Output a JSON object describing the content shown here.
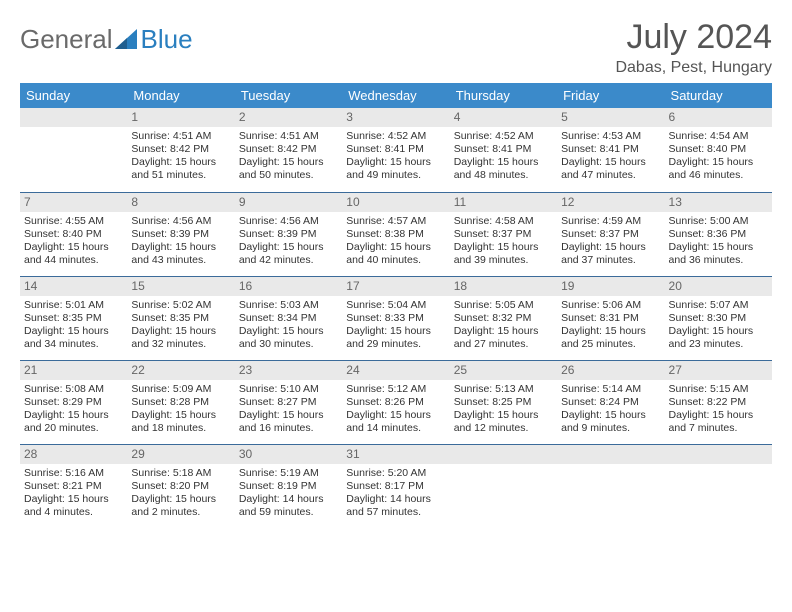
{
  "brand": {
    "part1": "General",
    "part2": "Blue"
  },
  "title": "July 2024",
  "location": "Dabas, Pest, Hungary",
  "colors": {
    "header_bg": "#3b8aca",
    "header_text": "#ffffff",
    "daynum_bg": "#e9e9e9",
    "daynum_text": "#666666",
    "row_divider": "#3b6b9a",
    "body_text": "#333333",
    "title_text": "#555555",
    "logo_gray": "#6a6a6a",
    "logo_blue": "#2a7fbf"
  },
  "weekdays": [
    "Sunday",
    "Monday",
    "Tuesday",
    "Wednesday",
    "Thursday",
    "Friday",
    "Saturday"
  ],
  "weeks": [
    [
      {
        "blank": true
      },
      {
        "d": "1",
        "sr": "4:51 AM",
        "ss": "8:42 PM",
        "dl": "15 hours and 51 minutes."
      },
      {
        "d": "2",
        "sr": "4:51 AM",
        "ss": "8:42 PM",
        "dl": "15 hours and 50 minutes."
      },
      {
        "d": "3",
        "sr": "4:52 AM",
        "ss": "8:41 PM",
        "dl": "15 hours and 49 minutes."
      },
      {
        "d": "4",
        "sr": "4:52 AM",
        "ss": "8:41 PM",
        "dl": "15 hours and 48 minutes."
      },
      {
        "d": "5",
        "sr": "4:53 AM",
        "ss": "8:41 PM",
        "dl": "15 hours and 47 minutes."
      },
      {
        "d": "6",
        "sr": "4:54 AM",
        "ss": "8:40 PM",
        "dl": "15 hours and 46 minutes."
      }
    ],
    [
      {
        "d": "7",
        "sr": "4:55 AM",
        "ss": "8:40 PM",
        "dl": "15 hours and 44 minutes."
      },
      {
        "d": "8",
        "sr": "4:56 AM",
        "ss": "8:39 PM",
        "dl": "15 hours and 43 minutes."
      },
      {
        "d": "9",
        "sr": "4:56 AM",
        "ss": "8:39 PM",
        "dl": "15 hours and 42 minutes."
      },
      {
        "d": "10",
        "sr": "4:57 AM",
        "ss": "8:38 PM",
        "dl": "15 hours and 40 minutes."
      },
      {
        "d": "11",
        "sr": "4:58 AM",
        "ss": "8:37 PM",
        "dl": "15 hours and 39 minutes."
      },
      {
        "d": "12",
        "sr": "4:59 AM",
        "ss": "8:37 PM",
        "dl": "15 hours and 37 minutes."
      },
      {
        "d": "13",
        "sr": "5:00 AM",
        "ss": "8:36 PM",
        "dl": "15 hours and 36 minutes."
      }
    ],
    [
      {
        "d": "14",
        "sr": "5:01 AM",
        "ss": "8:35 PM",
        "dl": "15 hours and 34 minutes."
      },
      {
        "d": "15",
        "sr": "5:02 AM",
        "ss": "8:35 PM",
        "dl": "15 hours and 32 minutes."
      },
      {
        "d": "16",
        "sr": "5:03 AM",
        "ss": "8:34 PM",
        "dl": "15 hours and 30 minutes."
      },
      {
        "d": "17",
        "sr": "5:04 AM",
        "ss": "8:33 PM",
        "dl": "15 hours and 29 minutes."
      },
      {
        "d": "18",
        "sr": "5:05 AM",
        "ss": "8:32 PM",
        "dl": "15 hours and 27 minutes."
      },
      {
        "d": "19",
        "sr": "5:06 AM",
        "ss": "8:31 PM",
        "dl": "15 hours and 25 minutes."
      },
      {
        "d": "20",
        "sr": "5:07 AM",
        "ss": "8:30 PM",
        "dl": "15 hours and 23 minutes."
      }
    ],
    [
      {
        "d": "21",
        "sr": "5:08 AM",
        "ss": "8:29 PM",
        "dl": "15 hours and 20 minutes."
      },
      {
        "d": "22",
        "sr": "5:09 AM",
        "ss": "8:28 PM",
        "dl": "15 hours and 18 minutes."
      },
      {
        "d": "23",
        "sr": "5:10 AM",
        "ss": "8:27 PM",
        "dl": "15 hours and 16 minutes."
      },
      {
        "d": "24",
        "sr": "5:12 AM",
        "ss": "8:26 PM",
        "dl": "15 hours and 14 minutes."
      },
      {
        "d": "25",
        "sr": "5:13 AM",
        "ss": "8:25 PM",
        "dl": "15 hours and 12 minutes."
      },
      {
        "d": "26",
        "sr": "5:14 AM",
        "ss": "8:24 PM",
        "dl": "15 hours and 9 minutes."
      },
      {
        "d": "27",
        "sr": "5:15 AM",
        "ss": "8:22 PM",
        "dl": "15 hours and 7 minutes."
      }
    ],
    [
      {
        "d": "28",
        "sr": "5:16 AM",
        "ss": "8:21 PM",
        "dl": "15 hours and 4 minutes."
      },
      {
        "d": "29",
        "sr": "5:18 AM",
        "ss": "8:20 PM",
        "dl": "15 hours and 2 minutes."
      },
      {
        "d": "30",
        "sr": "5:19 AM",
        "ss": "8:19 PM",
        "dl": "14 hours and 59 minutes."
      },
      {
        "d": "31",
        "sr": "5:20 AM",
        "ss": "8:17 PM",
        "dl": "14 hours and 57 minutes."
      },
      {
        "blank": true
      },
      {
        "blank": true
      },
      {
        "blank": true
      }
    ]
  ],
  "labels": {
    "sunrise": "Sunrise:",
    "sunset": "Sunset:",
    "daylight": "Daylight:"
  }
}
